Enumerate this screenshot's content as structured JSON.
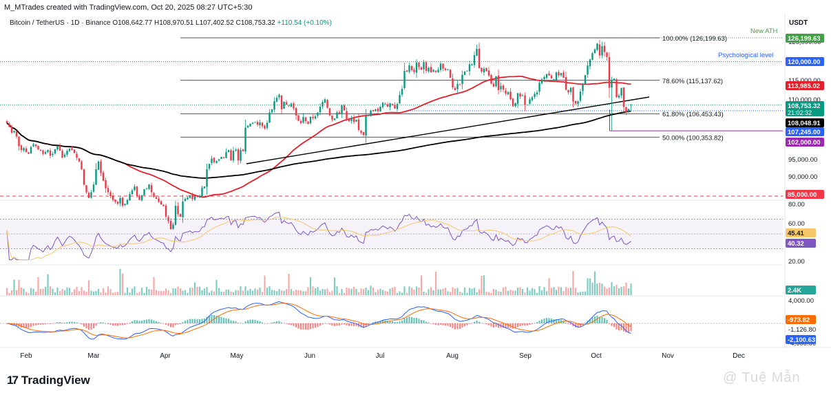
{
  "credit": "M_MTrades created with TradingView.com, Oct 20, 2025 08:27 UTC+5:30",
  "symbol": {
    "name": "Bitcoin / TetherUS · 1D · Binance",
    "open_label": "O",
    "open": "108,642.77",
    "high_label": "H",
    "high": "108,970.51",
    "low_label": "L",
    "low": "107,402.52",
    "close_label": "C",
    "close": "108,753.32",
    "change": "+110.54 (+0.10%)"
  },
  "currency": "USDT",
  "footer": {
    "logo_mark": "17",
    "logo_text": "TradingView",
    "watermark": "@ Tuệ Mẫn"
  },
  "colors": {
    "up": "#089981",
    "down": "#f23645",
    "sma_fast": "#e3202a",
    "sma_slow": "#000000",
    "trendline": "#000000",
    "ath": "#43a047",
    "blue_label": "#2962ff",
    "purple": "#9c27b0",
    "rsi": "#7e57c2",
    "rsi_ma": "#f7c76a",
    "macd": "#2962ff",
    "signal": "#ff6d00"
  },
  "chart_data": [
    {
      "type": "candlestick",
      "title": "Bitcoin / TetherUS · 1D · Binance",
      "x_tick_labels": [
        "Feb",
        "Mar",
        "Apr",
        "May",
        "Jun",
        "Jul",
        "Aug",
        "Sep",
        "Oct",
        "Nov",
        "Dec"
      ],
      "y_tick_labels": [
        "125,000.00",
        "115,000.00",
        "110,000.00",
        "95,000.00",
        "90,000.00"
      ],
      "ylim": [
        82000,
        128000
      ],
      "closes": [
        104000,
        103000,
        101500,
        102000,
        100500,
        98000,
        97000,
        97500,
        96500,
        96000,
        97800,
        98500,
        98000,
        97200,
        96800,
        96000,
        96500,
        97000,
        95500,
        96000,
        97200,
        98000,
        96800,
        95000,
        95800,
        96800,
        97400,
        97000,
        96200,
        95000,
        94000,
        92000,
        88000,
        86000,
        84500,
        86000,
        88000,
        92000,
        94000,
        91000,
        89000,
        87000,
        86000,
        85000,
        84000,
        83500,
        83000,
        84500,
        82500,
        83000,
        84000,
        85500,
        86500,
        87500,
        85000,
        84000,
        85200,
        86800,
        87000,
        88000,
        86000,
        84800,
        84300,
        83500,
        82800,
        82400,
        79600,
        78500,
        76400,
        77600,
        82500,
        80300,
        79600,
        83600,
        84300,
        84600,
        85200,
        84200,
        85000,
        84800,
        85100,
        87200,
        87500,
        92000,
        93400,
        94800,
        93800,
        94100,
        94600,
        95200,
        94900,
        96500,
        97000,
        94300,
        96800,
        97100,
        94300,
        97000,
        96700,
        102800,
        103300,
        103800,
        104100,
        104200,
        103600,
        104200,
        103200,
        102600,
        104100,
        106800,
        107600,
        109700,
        110600,
        111400,
        107600,
        109600,
        108800,
        108400,
        109100,
        107800,
        106000,
        104600,
        104000,
        105600,
        104500,
        103800,
        105700,
        105300,
        105800,
        106700,
        108300,
        109500,
        110200,
        108000,
        106000,
        104900,
        105200,
        106800,
        106500,
        108600,
        107300,
        104800,
        104500,
        105400,
        104300,
        104900,
        102200,
        101500,
        100900,
        105800,
        106000,
        107300,
        107100,
        107600,
        107100,
        108300,
        109300,
        108900,
        108300,
        109200,
        108700,
        107800,
        109000,
        111300,
        112900,
        117600,
        117400,
        119000,
        117800,
        117300,
        119800,
        118600,
        117900,
        119900,
        117600,
        118400,
        117200,
        117900,
        117300,
        117900,
        119500,
        118200,
        117800,
        118000,
        115800,
        113300,
        112600,
        114200,
        114000,
        116600,
        117400,
        117600,
        119300,
        119300,
        121700,
        123300,
        118300,
        117400,
        118200,
        117500,
        116400,
        114300,
        113500,
        116200,
        112600,
        113700,
        112700,
        111700,
        112100,
        110200,
        108400,
        109200,
        111800,
        110900,
        111200,
        108700,
        108800,
        110200,
        110700,
        111600,
        112000,
        114500,
        115400,
        116000,
        116800,
        116400,
        115600,
        115400,
        117200,
        116400,
        117000,
        115800,
        112700,
        112000,
        113200,
        109600,
        109100,
        109700,
        112200,
        114300,
        116500,
        119000,
        120600,
        122200,
        123200,
        124700,
        121600,
        124000,
        122500,
        121200,
        113200,
        115100,
        115600,
        110800,
        111200,
        113100,
        108200,
        106800,
        107700,
        108753
      ]
    },
    {
      "type": "rsi",
      "y_tick_labels": [
        "80.00",
        "60.00",
        "20.00"
      ],
      "ylim": [
        10,
        90
      ],
      "band": [
        30,
        70
      ],
      "rsi_value": "45.41",
      "rsi_ma_value": "40.32"
    },
    {
      "type": "volume",
      "label": "2.4K"
    },
    {
      "type": "macd",
      "y_tick_labels": [
        "4,000.00",
        "-4,000.00"
      ],
      "ylim": [
        -4600,
        4600
      ],
      "hist_value": "-973.82",
      "signal_value": "-1,126.80",
      "macd_value": "-2,100.63"
    }
  ],
  "overlays": {
    "fib_levels": [
      {
        "label": "100.00% (126,199.63)",
        "price": 126199.63
      },
      {
        "label": "78.60% (115,137.62)",
        "price": 115137.62
      },
      {
        "label": "61.80% (106,453.43)",
        "price": 106453.43
      },
      {
        "label": "50.00% (100,353.82)",
        "price": 100353.82
      }
    ],
    "annotations": {
      "new_ath": "New ATH",
      "psych": "Psychological level"
    },
    "price_tags": [
      {
        "text": "126,199.63",
        "kind": "ath",
        "price": 126199.63
      },
      {
        "text": "120,000.00",
        "kind": "blue",
        "price": 120000
      },
      {
        "text": "113,985.02",
        "kind": "sma_fast",
        "price": 113985.02
      },
      {
        "text": "108,753.32",
        "sub": "21:02:32",
        "kind": "last",
        "price": 108753.32
      },
      {
        "text": "108,048.91",
        "kind": "black",
        "price": 108048.91
      },
      {
        "text": "107,245.00",
        "kind": "blue",
        "price": 107245
      },
      {
        "text": "102,000.00",
        "kind": "purple",
        "price": 102000
      },
      {
        "text": "85,000.00",
        "kind": "red",
        "price": 85000
      }
    ]
  }
}
